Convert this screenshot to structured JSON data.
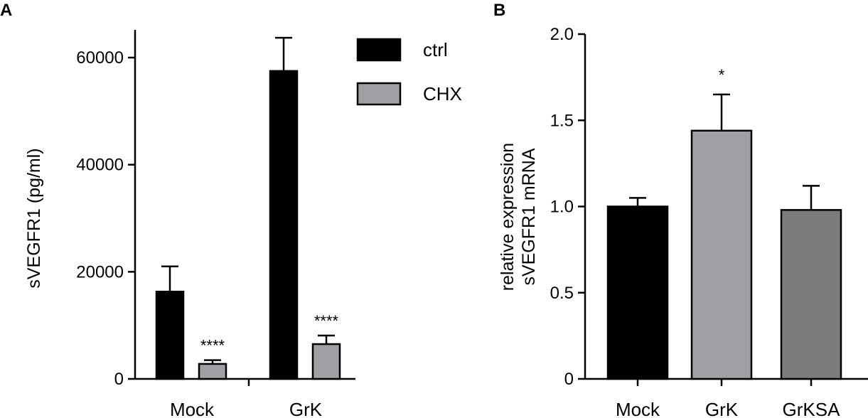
{
  "panels": {
    "a": {
      "letter": "A"
    },
    "b": {
      "letter": "B"
    }
  },
  "chart_data": [
    {
      "type": "bar",
      "ylabel": "sVEGFR1 (pg/ml)",
      "xlabel": "",
      "categories": [
        "Mock",
        "GrK"
      ],
      "ylim": [
        0,
        60000
      ],
      "yticks": [
        0,
        20000,
        40000,
        60000
      ],
      "grid": false,
      "legend_position": "top-right",
      "series": [
        {
          "name": "ctrl",
          "color": "#000000",
          "values": [
            16300,
            57500
          ],
          "errors": [
            4700,
            6200
          ],
          "annotations": [
            "",
            ""
          ]
        },
        {
          "name": "CHX",
          "color": "#a0a0a4",
          "values": [
            2800,
            6500
          ],
          "errors": [
            700,
            1600
          ],
          "annotations": [
            "****",
            "****"
          ]
        }
      ]
    },
    {
      "type": "bar",
      "ylabel": "relative expression\nsVEGFR1 mRNA",
      "xlabel": "",
      "categories": [
        "Mock",
        "GrK",
        "GrKSA"
      ],
      "ylim": [
        0,
        2.0
      ],
      "yticks": [
        0,
        0.5,
        1.0,
        1.5,
        2.0
      ],
      "grid": false,
      "series": [
        {
          "values": [
            1.0,
            1.44,
            0.98
          ],
          "errors": [
            0.05,
            0.21,
            0.14
          ],
          "colors": [
            "#000000",
            "#a0a0a4",
            "#7c7c7c"
          ],
          "annotations": [
            "",
            "*",
            ""
          ]
        }
      ]
    }
  ]
}
